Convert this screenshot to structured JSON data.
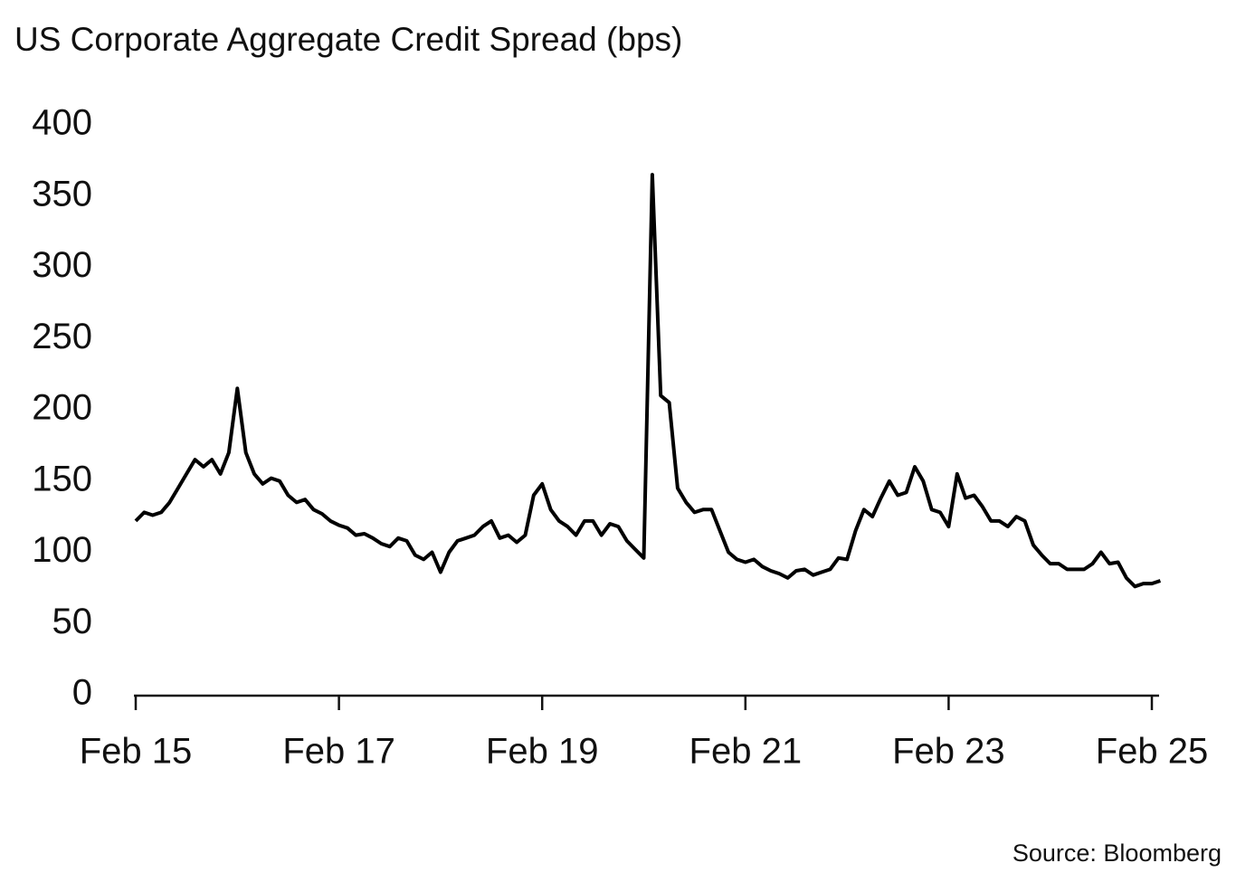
{
  "chart_data": {
    "type": "line",
    "title": "US Corporate Aggregate Credit Spread (bps)",
    "source": "Source: Bloomberg",
    "categories": [
      "Feb 15",
      null,
      null,
      null,
      null,
      null,
      null,
      null,
      null,
      null,
      null,
      null,
      null,
      null,
      null,
      null,
      null,
      null,
      null,
      null,
      null,
      null,
      null,
      null,
      "Feb 17",
      null,
      null,
      null,
      null,
      null,
      null,
      null,
      null,
      null,
      null,
      null,
      null,
      null,
      null,
      null,
      null,
      null,
      null,
      null,
      null,
      null,
      null,
      null,
      "Feb 19",
      null,
      null,
      null,
      null,
      null,
      null,
      null,
      null,
      null,
      null,
      null,
      null,
      null,
      null,
      null,
      null,
      null,
      null,
      null,
      null,
      null,
      null,
      null,
      "Feb 21",
      null,
      null,
      null,
      null,
      null,
      null,
      null,
      null,
      null,
      null,
      null,
      null,
      null,
      null,
      null,
      null,
      null,
      null,
      null,
      null,
      null,
      null,
      null,
      "Feb 23",
      null,
      null,
      null,
      null,
      null,
      null,
      null,
      null,
      null,
      null,
      null,
      null,
      null,
      null,
      null,
      null,
      null,
      null,
      null,
      null,
      null,
      null,
      null,
      "Feb 25",
      null
    ],
    "values": [
      122,
      128,
      126,
      128,
      135,
      145,
      155,
      165,
      160,
      165,
      155,
      170,
      215,
      170,
      155,
      148,
      152,
      150,
      140,
      135,
      137,
      130,
      127,
      122,
      119,
      117,
      112,
      113,
      110,
      106,
      104,
      110,
      108,
      98,
      95,
      100,
      86,
      100,
      108,
      110,
      112,
      118,
      122,
      110,
      112,
      107,
      112,
      140,
      148,
      130,
      122,
      118,
      112,
      122,
      122,
      112,
      120,
      118,
      108,
      102,
      96,
      365,
      210,
      205,
      145,
      135,
      128,
      130,
      130,
      115,
      100,
      95,
      93,
      95,
      90,
      87,
      85,
      82,
      87,
      88,
      84,
      86,
      88,
      96,
      95,
      115,
      130,
      125,
      138,
      150,
      140,
      142,
      160,
      150,
      130,
      128,
      118,
      155,
      138,
      140,
      132,
      122,
      122,
      118,
      125,
      122,
      105,
      98,
      92,
      92,
      88,
      88,
      88,
      92,
      100,
      92,
      93,
      82,
      76,
      78,
      78,
      80
    ],
    "color": "#000000",
    "ylim": [
      0,
      400
    ],
    "yticks": [
      0,
      50,
      100,
      150,
      200,
      250,
      300,
      350,
      400
    ],
    "grid": false
  }
}
